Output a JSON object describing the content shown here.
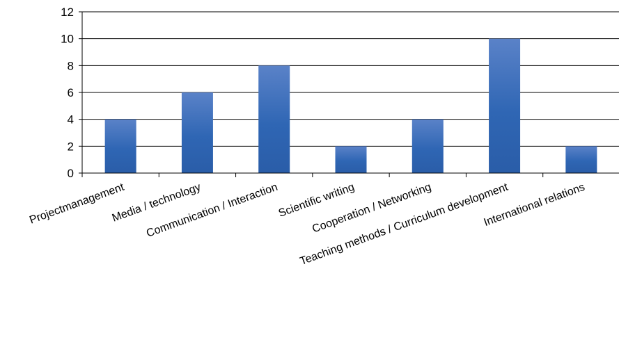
{
  "chart_data": {
    "type": "bar",
    "title": "",
    "xlabel": "",
    "ylabel": "",
    "categories": [
      "Projectmanagement",
      "Media / technology",
      "Communication / Interaction",
      "Scientific writing",
      "Cooperation / Networking",
      "Teaching methods / Curriculum development",
      "International relations"
    ],
    "values": [
      4,
      6,
      8,
      2,
      4,
      10,
      2
    ],
    "ylim": [
      0,
      12
    ],
    "yticks": [
      0,
      2,
      4,
      6,
      8,
      10,
      12
    ],
    "grid": true,
    "legend": "none",
    "colors": {
      "bar_top": "#5a82c8",
      "bar_mid": "#2f66b4",
      "bar_bottom": "#2a5da8",
      "grid": "#000000",
      "axis": "#000000"
    }
  }
}
